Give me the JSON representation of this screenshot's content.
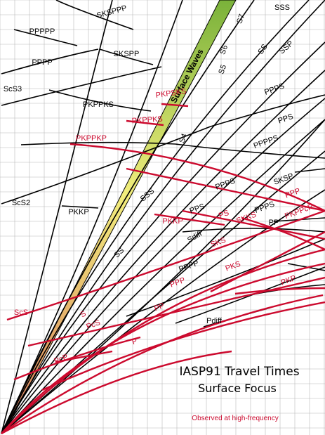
{
  "chart_data": {
    "type": "line",
    "title": "IASP91 Travel Times",
    "subtitle": "Surface Focus",
    "annotation": "Observed at high-frequency",
    "band_label": "Surface Waves",
    "grid": true,
    "colors": {
      "black_phases": "#000000",
      "red_phases": "#cc0a2e",
      "grid": "#b8b8b8",
      "band_top": "#7ab23a",
      "band_mid": "#f2ee7c",
      "band_bottom": "#d97b5e",
      "note": "#cc0a2e"
    },
    "black_labels": [
      "SKSPPP",
      "PPPPP",
      "PPPP",
      "SKSPP",
      "ScS3",
      "PKPPKS",
      "S4",
      "S5",
      "S6",
      "S7",
      "SSS",
      "SS",
      "SSP",
      "PPPS",
      "PPS",
      "PPPPS",
      "SKSP",
      "PPPS",
      "ScS2",
      "PKKP",
      "SSS",
      "PPS",
      "PPPS",
      "SS",
      "PP",
      "Sdiff",
      "PPPP",
      "Pdiff"
    ],
    "red_labels": [
      "PKPSKS",
      "PKPPKS",
      "PKPPKP",
      "PKKP",
      "PS",
      "SKKS",
      "PPP",
      "PKPPcP",
      "SKS",
      "PKS",
      "PPP",
      "PKP",
      "ScS",
      "S",
      "PcS",
      "PP",
      "P",
      "PcP"
    ]
  }
}
